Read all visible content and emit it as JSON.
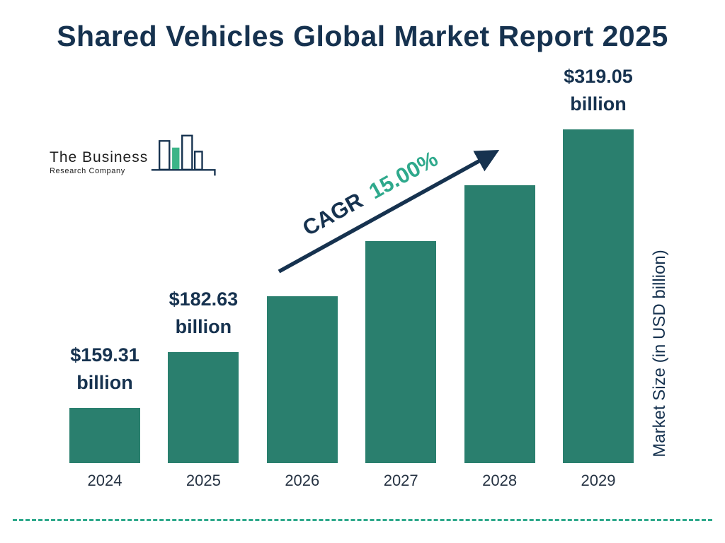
{
  "title": "Shared Vehicles Global Market Report 2025",
  "logo": {
    "line1": "The Business",
    "line2": "Research Company"
  },
  "cagr": {
    "label": "CAGR",
    "value": "15.00%"
  },
  "y_axis_label": "Market Size (in USD billion)",
  "colors": {
    "bar": "#2A7F6E",
    "navy": "#16324F",
    "teal": "#2FA98C"
  },
  "chart_data": {
    "type": "bar",
    "title": "Shared Vehicles Global Market Report 2025",
    "categories": [
      "2024",
      "2025",
      "2026",
      "2027",
      "2028",
      "2029"
    ],
    "values": [
      159.31,
      182.63,
      210.02,
      241.53,
      277.76,
      319.05
    ],
    "value_unit": "USD billion",
    "xlabel": "",
    "ylabel": "Market Size (in USD billion)",
    "grid": false,
    "legend": "none",
    "annotation": "CAGR 15.00%",
    "labeled_points": [
      {
        "index": 0,
        "category": "2024",
        "amount": "$159.31",
        "unit": "billion"
      },
      {
        "index": 1,
        "category": "2025",
        "amount": "$182.63",
        "unit": "billion"
      },
      {
        "index": 5,
        "category": "2029",
        "amount": "$319.05",
        "unit": "billion"
      }
    ]
  }
}
